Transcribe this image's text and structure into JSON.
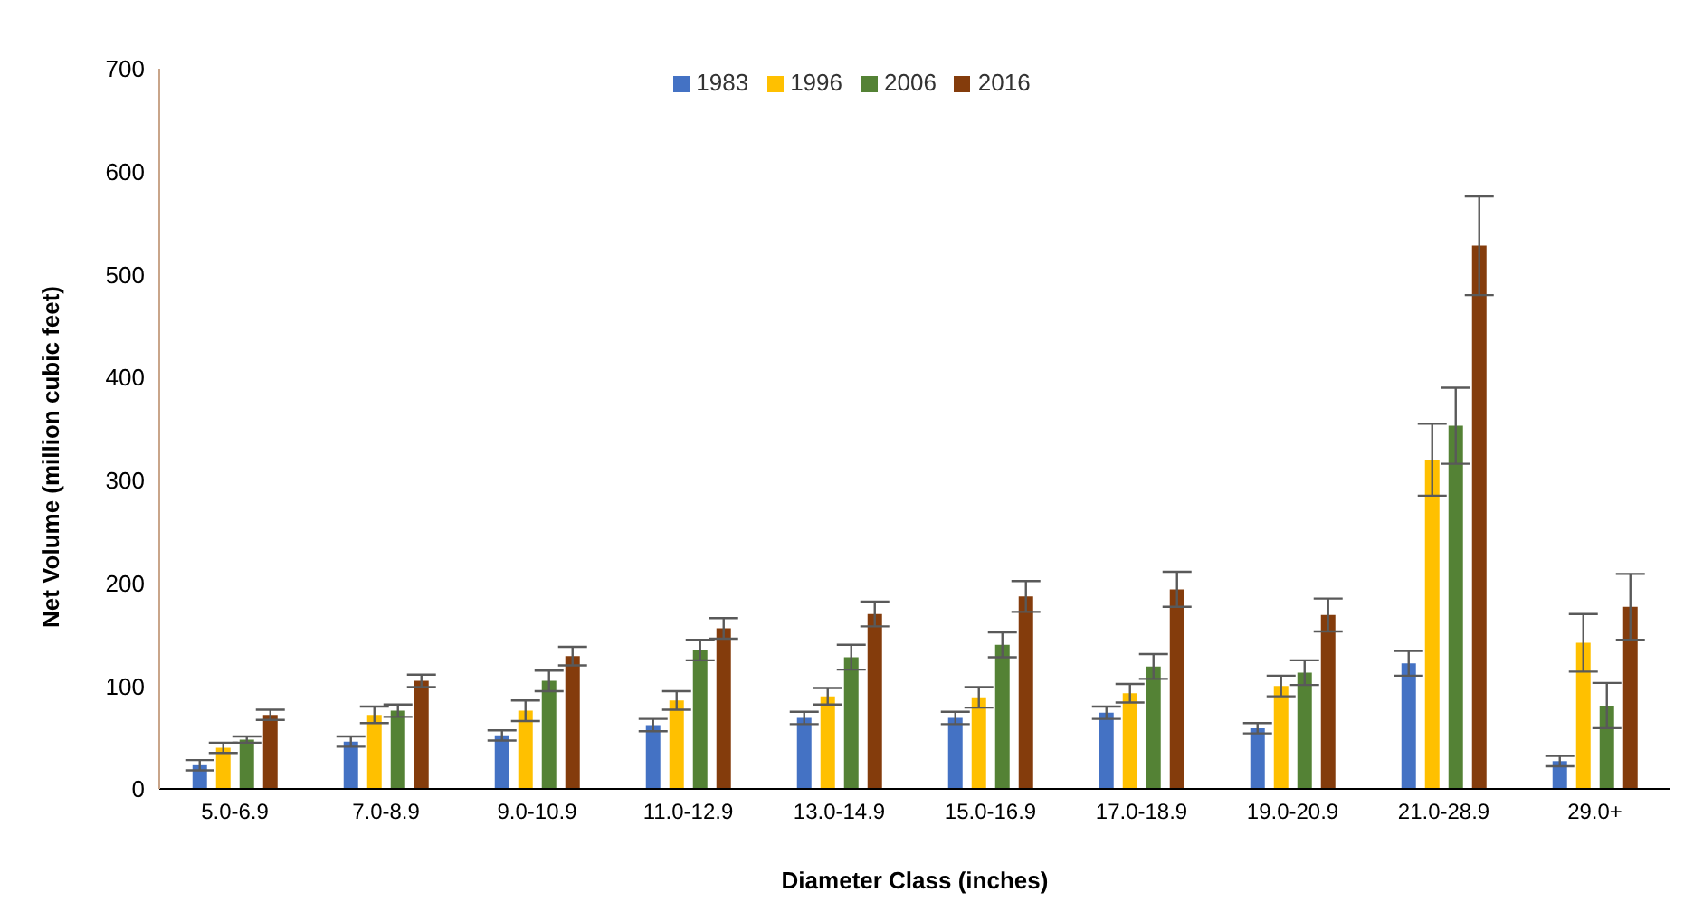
{
  "chart_data": {
    "type": "bar",
    "xlabel": "Diameter Class (inches)",
    "ylabel": "Net Volume (million cubic feet)",
    "categories": [
      "5.0-6.9",
      "7.0-8.9",
      "9.0-10.9",
      "11.0-12.9",
      "13.0-14.9",
      "15.0-16.9",
      "17.0-18.9",
      "19.0-20.9",
      "21.0-28.9",
      "29.0+"
    ],
    "series": [
      {
        "name": "1983",
        "color": "#4472c4",
        "values": [
          23,
          46,
          52,
          62,
          69,
          69,
          74,
          59,
          122,
          27
        ],
        "errors": [
          5,
          5,
          5,
          6,
          6,
          6,
          6,
          5,
          12,
          5
        ]
      },
      {
        "name": "1996",
        "color": "#ffc000",
        "values": [
          40,
          72,
          76,
          86,
          90,
          89,
          93,
          100,
          320,
          142
        ],
        "errors": [
          5,
          8,
          10,
          9,
          8,
          10,
          9,
          10,
          35,
          28
        ]
      },
      {
        "name": "2006",
        "color": "#548235",
        "values": [
          48,
          76,
          105,
          135,
          128,
          140,
          119,
          113,
          353,
          81
        ],
        "errors": [
          3,
          6,
          10,
          10,
          12,
          12,
          12,
          12,
          37,
          22
        ]
      },
      {
        "name": "2016",
        "color": "#843c0c",
        "values": [
          72,
          105,
          129,
          156,
          170,
          187,
          194,
          169,
          528,
          177
        ],
        "errors": [
          5,
          6,
          9,
          10,
          12,
          15,
          17,
          16,
          48,
          32
        ]
      }
    ],
    "ylim": [
      0,
      700
    ],
    "yticks": [
      0,
      100,
      200,
      300,
      400,
      500,
      600,
      700
    ],
    "grid": false,
    "legend": "top"
  }
}
